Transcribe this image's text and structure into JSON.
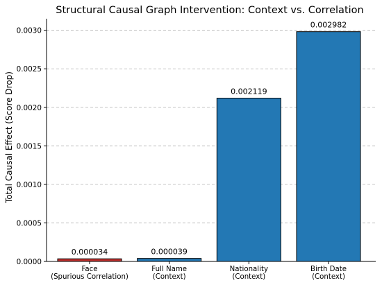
{
  "chart_data": {
    "type": "bar",
    "title": "Structural Causal Graph Intervention: Context vs. Correlation",
    "xlabel": "",
    "ylabel": "Total Causal Effect (Score Drop)",
    "ylim": [
      0,
      0.00315
    ],
    "yticks": [
      0.0,
      0.0005,
      0.001,
      0.0015,
      0.002,
      0.0025,
      0.003
    ],
    "ytick_labels": [
      "0.0000",
      "0.0005",
      "0.0010",
      "0.0015",
      "0.0020",
      "0.0025",
      "0.0030"
    ],
    "grid": "horizontal dashed",
    "categories": [
      [
        "Face",
        "(Spurious Correlation)"
      ],
      [
        "Full Name",
        "(Context)"
      ],
      [
        "Nationality",
        "(Context)"
      ],
      [
        "Birth Date",
        "(Context)"
      ]
    ],
    "values": [
      3.4e-05,
      3.9e-05,
      0.002119,
      0.002982
    ],
    "data_labels": [
      "0.000034",
      "0.000039",
      "0.002119",
      "0.002982"
    ],
    "bar_colors": [
      "#c0302d",
      "#2378b4",
      "#2378b4",
      "#2378b4"
    ]
  }
}
